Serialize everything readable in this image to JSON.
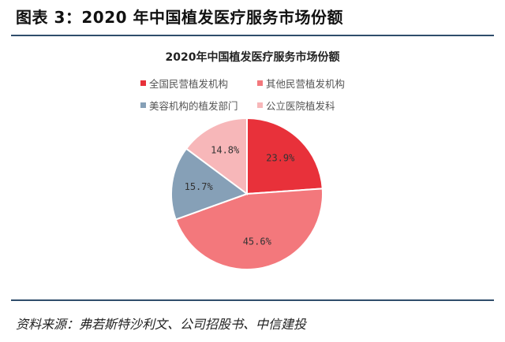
{
  "figure_title": "图表 3：2020 年中国植发医疗服务市场份额",
  "source_note": "资料来源：弗若斯特沙利文、公司招股书、中信建投",
  "chart_data": {
    "type": "pie",
    "title": "2020年中国植发医疗服务市场份额",
    "legend_position": "top",
    "categories": [
      "全国民营植发机构",
      "其他民营植发机构",
      "美容机构的植发部门",
      "公立医院植发科"
    ],
    "values": [
      23.9,
      45.6,
      15.7,
      14.8
    ],
    "value_labels": [
      "23.9%",
      "45.6%",
      "15.7%",
      "14.8%"
    ],
    "colors": [
      "#e8313a",
      "#f3787c",
      "#86a0b7",
      "#f7b7b9"
    ],
    "slice_order": [
      0,
      1,
      2,
      3
    ]
  }
}
